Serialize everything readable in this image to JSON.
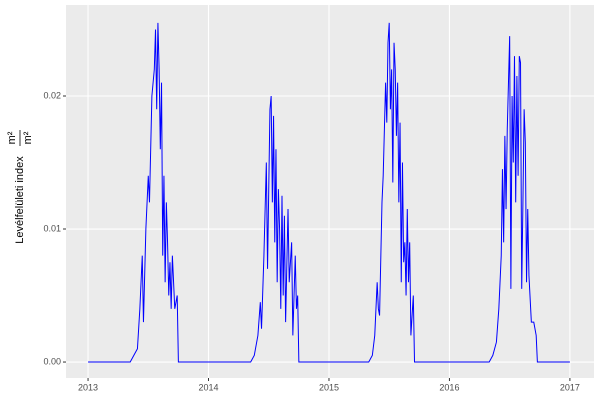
{
  "chart_data": {
    "type": "line",
    "y_label": "Levélfelületi index",
    "y_unit": {
      "numerator": "m²",
      "denominator": "m²"
    },
    "color": "#0000ff",
    "grid": true,
    "xlim": [
      2012.817,
      2017.2
    ],
    "xticks": [
      2013,
      2014,
      2015,
      2016,
      2017
    ],
    "ylim": [
      -0.0012,
      0.02684
    ],
    "yticks": [
      {
        "value": 0,
        "label": "0.00"
      },
      0.01,
      0.02
    ],
    "x": [
      2013.0,
      2013.35,
      2013.38,
      2013.41,
      2013.43,
      2013.45,
      2013.46,
      2013.48,
      2013.5,
      2013.51,
      2013.53,
      2013.55,
      2013.56,
      2013.57,
      2013.58,
      2013.59,
      2013.6,
      2013.61,
      2013.62,
      2013.63,
      2013.64,
      2013.65,
      2013.66,
      2013.67,
      2013.68,
      2013.69,
      2013.7,
      2013.72,
      2013.74,
      2013.75,
      2014.35,
      2014.38,
      2014.41,
      2014.43,
      2014.44,
      2014.46,
      2014.48,
      2014.49,
      2014.51,
      2014.52,
      2014.53,
      2014.54,
      2014.55,
      2014.56,
      2014.57,
      2014.58,
      2014.59,
      2014.6,
      2014.61,
      2014.62,
      2014.63,
      2014.64,
      2014.66,
      2014.67,
      2014.69,
      2014.7,
      2014.72,
      2014.73,
      2014.74,
      2014.75,
      2015.33,
      2015.36,
      2015.38,
      2015.4,
      2015.41,
      2015.42,
      2015.44,
      2015.45,
      2015.47,
      2015.48,
      2015.49,
      2015.5,
      2015.51,
      2015.52,
      2015.53,
      2015.54,
      2015.55,
      2015.56,
      2015.57,
      2015.58,
      2015.59,
      2015.6,
      2015.61,
      2015.62,
      2015.63,
      2015.64,
      2015.65,
      2015.66,
      2015.67,
      2015.68,
      2015.7,
      2015.71,
      2016.33,
      2016.36,
      2016.39,
      2016.41,
      2016.43,
      2016.44,
      2016.45,
      2016.46,
      2016.47,
      2016.48,
      2016.49,
      2016.5,
      2016.51,
      2016.52,
      2016.53,
      2016.54,
      2016.55,
      2016.56,
      2016.57,
      2016.58,
      2016.59,
      2016.6,
      2016.61,
      2016.62,
      2016.63,
      2016.64,
      2016.65,
      2016.66,
      2016.68,
      2016.7,
      2016.72,
      2016.73,
      2017.0
    ],
    "values": [
      0,
      0,
      0.0005,
      0.001,
      0.004,
      0.008,
      0.003,
      0.01,
      0.014,
      0.012,
      0.02,
      0.022,
      0.025,
      0.019,
      0.0255,
      0.022,
      0.016,
      0.021,
      0.008,
      0.014,
      0.006,
      0.012,
      0.009,
      0.005,
      0.0075,
      0.004,
      0.008,
      0.004,
      0.005,
      0,
      0,
      0.0005,
      0.002,
      0.0045,
      0.0025,
      0.008,
      0.015,
      0.007,
      0.019,
      0.02,
      0.012,
      0.0185,
      0.009,
      0.016,
      0.006,
      0.013,
      0.01,
      0.004,
      0.0125,
      0.005,
      0.011,
      0.003,
      0.0115,
      0.006,
      0.009,
      0.002,
      0.008,
      0.004,
      0.005,
      0,
      0,
      0.0005,
      0.002,
      0.006,
      0.004,
      0.0035,
      0.012,
      0.014,
      0.021,
      0.018,
      0.024,
      0.0255,
      0.019,
      0.022,
      0.0135,
      0.024,
      0.022,
      0.017,
      0.021,
      0.012,
      0.018,
      0.006,
      0.015,
      0.0075,
      0.009,
      0.005,
      0.0115,
      0.006,
      0.009,
      0.002,
      0.005,
      0,
      0,
      0.0005,
      0.0015,
      0.004,
      0.008,
      0.0145,
      0.009,
      0.017,
      0.0115,
      0.0175,
      0.021,
      0.0245,
      0.0055,
      0.02,
      0.015,
      0.023,
      0.012,
      0.0215,
      0.014,
      0.023,
      0.0225,
      0.0055,
      0.012,
      0.019,
      0.0165,
      0.006,
      0.0115,
      0.0065,
      0.003,
      0.003,
      0.002,
      0,
      0
    ]
  }
}
